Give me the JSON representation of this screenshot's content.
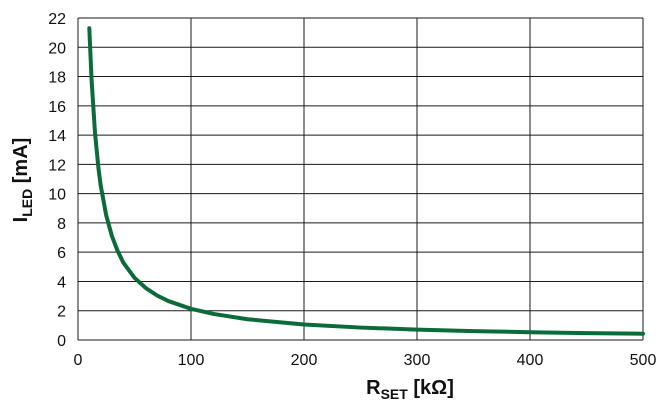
{
  "chart_data": {
    "type": "line",
    "xlabel": {
      "main": "R",
      "sub": "SET",
      "unit": " [kΩ]"
    },
    "ylabel": {
      "main": "I",
      "sub": "LED",
      "unit": " [mA]"
    },
    "xlim": [
      0,
      500
    ],
    "ylim": [
      0,
      22
    ],
    "x_ticks": [
      "0",
      "100",
      "200",
      "300",
      "400",
      "500"
    ],
    "y_ticks": [
      "0",
      "2",
      "4",
      "6",
      "8",
      "10",
      "12",
      "14",
      "16",
      "18",
      "20",
      "22"
    ],
    "grid": true,
    "series": [
      {
        "color": "#0b6b3a",
        "x": [
          10,
          12,
          15,
          18,
          20,
          25,
          30,
          35,
          40,
          50,
          60,
          70,
          80,
          100,
          120,
          150,
          200,
          250,
          300,
          350,
          400,
          450,
          500
        ],
        "y": [
          21.3,
          17.8,
          14.2,
          11.8,
          10.6,
          8.5,
          7.1,
          6.1,
          5.3,
          4.25,
          3.55,
          3.04,
          2.66,
          2.13,
          1.78,
          1.42,
          1.06,
          0.85,
          0.71,
          0.61,
          0.53,
          0.47,
          0.43
        ]
      }
    ]
  }
}
